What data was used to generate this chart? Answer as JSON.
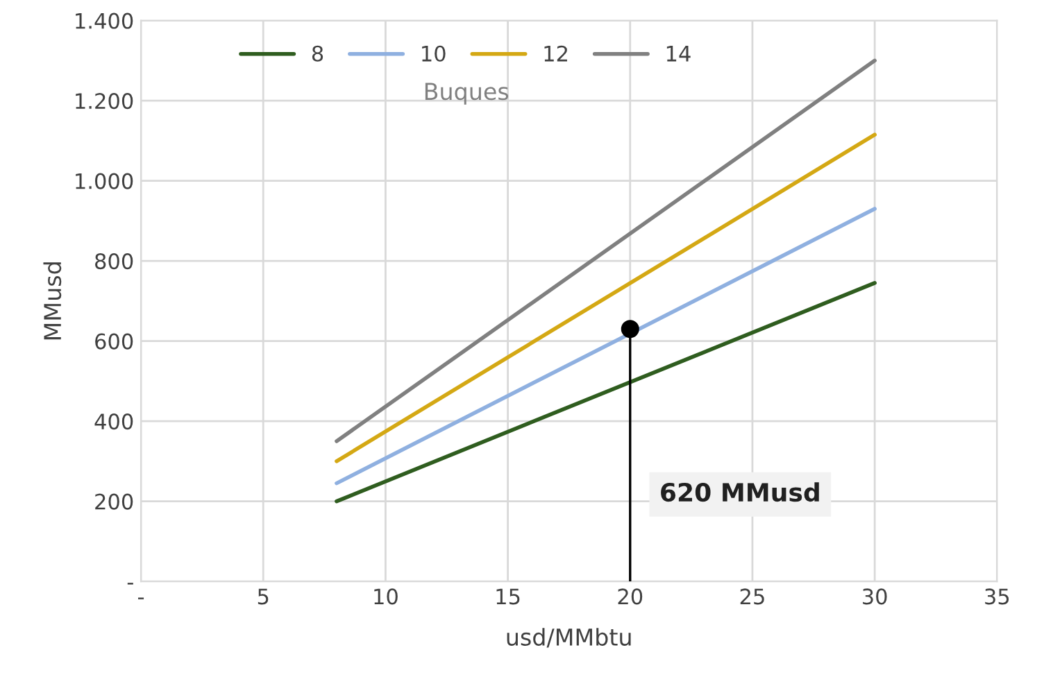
{
  "chart_data": {
    "type": "line",
    "xlabel": "usd/MMbtu",
    "ylabel": "MMusd",
    "legend_title": "Buques",
    "series": [
      {
        "name": "8",
        "color": "#2f5d1f",
        "x": [
          8,
          30
        ],
        "values": [
          200,
          745
        ]
      },
      {
        "name": "10",
        "color": "#8fb0e0",
        "x": [
          8,
          30
        ],
        "values": [
          245,
          930
        ]
      },
      {
        "name": "12",
        "color": "#d4a814",
        "x": [
          8,
          30
        ],
        "values": [
          300,
          1115
        ]
      },
      {
        "name": "14",
        "color": "#808080",
        "x": [
          8,
          30
        ],
        "values": [
          350,
          1300
        ]
      },
      {
        "type": "line",
        "color": "#000000",
        "x": [
          20,
          20
        ],
        "values": [
          0,
          630
        ]
      },
      {
        "type": "scatter",
        "color": "#000000",
        "x": [
          20
        ],
        "values": [
          630
        ],
        "marker": "circle"
      }
    ],
    "annotations": [
      "620 MMusd"
    ],
    "xlim": [
      0,
      35
    ],
    "xticks": [
      {
        "value": 0,
        "label": "-"
      },
      5,
      10,
      15,
      20,
      25,
      30,
      35
    ],
    "ylim": [
      0,
      1400
    ],
    "yticks": [
      {
        "value": 0,
        "label": "-"
      },
      200,
      400,
      600,
      800,
      {
        "value": 1000,
        "label": "1.000"
      },
      {
        "value": 1200,
        "label": "1.200"
      },
      {
        "value": 1400,
        "label": "1.400"
      }
    ],
    "grid": true,
    "legend": "top"
  }
}
